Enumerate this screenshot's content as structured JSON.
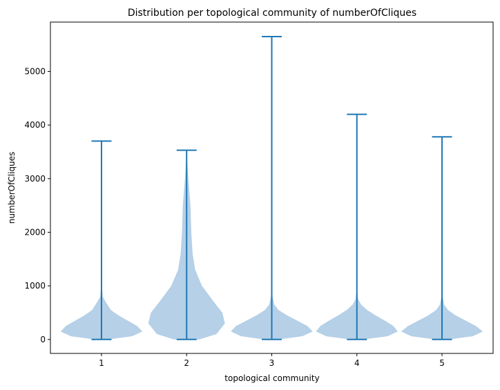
{
  "chart_data": {
    "type": "violin",
    "title": "Distribution per topological community of numberOfCliques",
    "xlabel": "topological community",
    "ylabel": "numberOfCliques",
    "categories": [
      "1",
      "2",
      "3",
      "4",
      "5"
    ],
    "ylim": [
      -260,
      5920
    ],
    "yticks": [
      0,
      1000,
      2000,
      3000,
      4000,
      5000
    ],
    "ytick_labels": [
      "0",
      "1000",
      "2000",
      "3000",
      "4000",
      "5000"
    ],
    "grid": false,
    "legend": "none",
    "colors": {
      "body": "#b5d0e7",
      "line": "#1f77b4"
    },
    "violins": [
      {
        "category": "1",
        "min": 0,
        "max": 3700,
        "density": [
          [
            0,
            0.08
          ],
          [
            60,
            0.36
          ],
          [
            150,
            0.48
          ],
          [
            250,
            0.42
          ],
          [
            350,
            0.31
          ],
          [
            450,
            0.2
          ],
          [
            550,
            0.11
          ],
          [
            700,
            0.05
          ],
          [
            800,
            0.015
          ],
          [
            1000,
            0.004
          ],
          [
            1500,
            0.002
          ],
          [
            3700,
            0.0
          ]
        ]
      },
      {
        "category": "2",
        "min": 0,
        "max": 3530,
        "density": [
          [
            0,
            0.15
          ],
          [
            100,
            0.35
          ],
          [
            300,
            0.45
          ],
          [
            500,
            0.42
          ],
          [
            700,
            0.32
          ],
          [
            1000,
            0.18
          ],
          [
            1300,
            0.1
          ],
          [
            1600,
            0.07
          ],
          [
            2000,
            0.055
          ],
          [
            2500,
            0.045
          ],
          [
            3000,
            0.02
          ],
          [
            3300,
            0.008
          ],
          [
            3530,
            0.0
          ]
        ]
      },
      {
        "category": "3",
        "min": 0,
        "max": 5650,
        "density": [
          [
            0,
            0.08
          ],
          [
            60,
            0.36
          ],
          [
            150,
            0.48
          ],
          [
            250,
            0.42
          ],
          [
            350,
            0.3
          ],
          [
            450,
            0.18
          ],
          [
            550,
            0.08
          ],
          [
            650,
            0.03
          ],
          [
            800,
            0.01
          ],
          [
            1000,
            0.004
          ],
          [
            2000,
            0.002
          ],
          [
            5650,
            0.0
          ]
        ]
      },
      {
        "category": "4",
        "min": 0,
        "max": 4200,
        "density": [
          [
            0,
            0.08
          ],
          [
            60,
            0.36
          ],
          [
            150,
            0.48
          ],
          [
            250,
            0.43
          ],
          [
            350,
            0.33
          ],
          [
            450,
            0.22
          ],
          [
            550,
            0.12
          ],
          [
            650,
            0.05
          ],
          [
            750,
            0.015
          ],
          [
            900,
            0.005
          ],
          [
            1500,
            0.002
          ],
          [
            4200,
            0.0
          ]
        ]
      },
      {
        "category": "5",
        "min": 0,
        "max": 3780,
        "density": [
          [
            0,
            0.08
          ],
          [
            60,
            0.36
          ],
          [
            150,
            0.48
          ],
          [
            250,
            0.4
          ],
          [
            350,
            0.28
          ],
          [
            450,
            0.16
          ],
          [
            550,
            0.07
          ],
          [
            650,
            0.025
          ],
          [
            800,
            0.008
          ],
          [
            1000,
            0.003
          ],
          [
            1500,
            0.002
          ],
          [
            3780,
            0.0
          ]
        ]
      }
    ]
  }
}
